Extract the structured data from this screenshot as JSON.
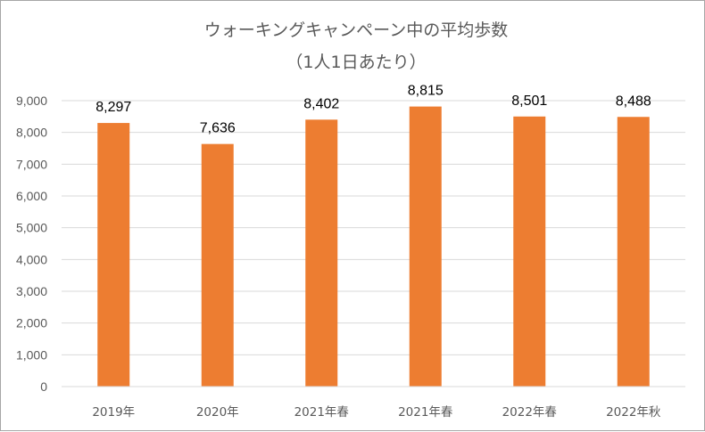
{
  "chart_data": {
    "type": "bar",
    "title": "ウォーキングキャンペーン中の平均歩数",
    "subtitle": "（1人1日あたり）",
    "categories": [
      "2019年",
      "2020年",
      "2021年春",
      "2021年春",
      "2022年春",
      "2022年秋"
    ],
    "values": [
      8297,
      7636,
      8402,
      8815,
      8501,
      8488
    ],
    "data_labels": [
      "8,297",
      "7,636",
      "8,402",
      "8,815",
      "8,501",
      "8,488"
    ],
    "yticks": [
      0,
      1000,
      2000,
      3000,
      4000,
      5000,
      6000,
      7000,
      8000,
      9000
    ],
    "ytick_labels": [
      "0",
      "1,000",
      "2,000",
      "3,000",
      "4,000",
      "5,000",
      "6,000",
      "7,000",
      "8,000",
      "9,000"
    ],
    "ylim": [
      0,
      9000
    ],
    "xlabel": "",
    "ylabel": "",
    "grid": true,
    "legend": "none",
    "bar_color": "#ED7D31",
    "grid_color": "#d9d9d9"
  }
}
